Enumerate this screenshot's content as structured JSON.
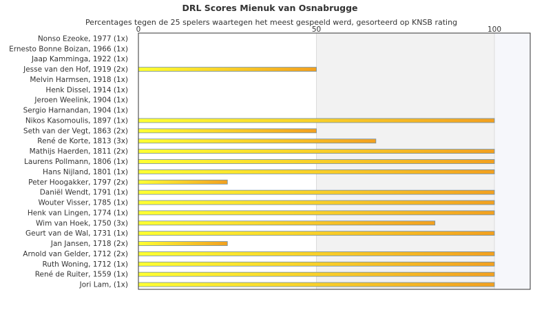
{
  "chart_data": {
    "type": "bar",
    "orientation": "horizontal",
    "title": "DRL Scores Mienuk van Osnabrugge",
    "subtitle": "Percentages tegen de 25 spelers waartegen het meest gespeeld werd, gesorteerd op KNSB rating",
    "xlim": [
      0,
      110
    ],
    "ticks": [
      0,
      50,
      100
    ],
    "grid": true,
    "categories": [
      "Nonso Ezeoke, 1977 (1x)",
      "Ernesto Bonne Boizan, 1966 (1x)",
      "Jaap Kamminga, 1922 (1x)",
      "Jesse van den Hof, 1919 (2x)",
      "Melvin Harmsen, 1918 (1x)",
      "Henk Dissel, 1914 (1x)",
      "Jeroen Weelink, 1904 (1x)",
      "Sergio Harnandan, 1904 (1x)",
      "Nikos Kasomoulis, 1897 (1x)",
      "Seth van der Vegt, 1863 (2x)",
      "René de Korte, 1813 (3x)",
      "Mathijs Haerden, 1811 (2x)",
      "Laurens Pollmann, 1806 (1x)",
      "Hans Nijland, 1801 (1x)",
      "Peter Hoogakker, 1797 (2x)",
      "Daniël Wendt, 1791 (1x)",
      "Wouter Visser, 1785 (1x)",
      "Henk van Lingen, 1774 (1x)",
      "Wim van Hoek, 1750 (3x)",
      "Geurt van de Wal, 1731 (1x)",
      "Jan Jansen, 1718 (2x)",
      "Arnold van Gelder, 1712 (2x)",
      "Ruth Woning, 1712 (1x)",
      "René de Ruiter, 1559 (1x)",
      "Jori Lam,  (1x)"
    ],
    "values": [
      0,
      0,
      0,
      50,
      0,
      0,
      0,
      0,
      100,
      50,
      66.7,
      100,
      100,
      100,
      25,
      100,
      100,
      100,
      83.3,
      100,
      25,
      100,
      100,
      100,
      100
    ],
    "colors": {
      "bar_start": "#ffff33",
      "bar_end": "#f2a020",
      "bar_stroke": "#6f8fa8",
      "shade": "#f2f2f2",
      "shade_right": "#f6f7fb",
      "axis": "#333333",
      "text": "#333333"
    }
  }
}
